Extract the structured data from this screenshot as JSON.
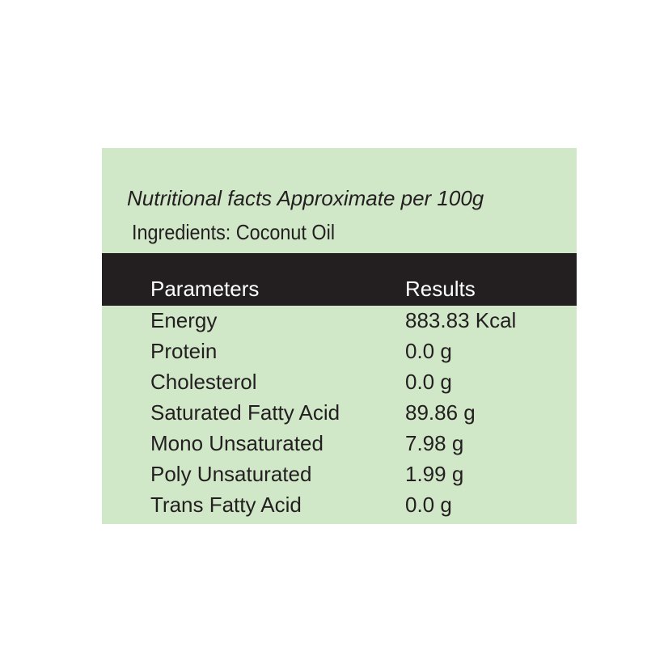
{
  "header": {
    "title": "Nutritional facts Approximate per 100g",
    "subtitle": "Ingredients: Coconut Oil"
  },
  "table": {
    "columns": [
      "Parameters",
      "Results"
    ],
    "rows": [
      [
        "Energy",
        "883.83 Kcal"
      ],
      [
        "Protein",
        "0.0 g"
      ],
      [
        "Cholesterol",
        "0.0 g"
      ],
      [
        "Saturated Fatty Acid",
        "89.86 g"
      ],
      [
        "Mono Unsaturated",
        "7.98 g"
      ],
      [
        "Poly Unsaturated",
        "1.99 g"
      ],
      [
        "Trans Fatty Acid",
        "0.0 g"
      ]
    ]
  }
}
